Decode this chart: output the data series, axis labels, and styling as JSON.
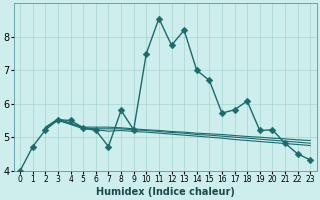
{
  "xlabel": "Humidex (Indice chaleur)",
  "background_color": "#cdeeed",
  "line_color": "#1a6b6b",
  "grid_color": "#a8d5d0",
  "xlim": [
    -0.5,
    23.5
  ],
  "ylim": [
    4,
    9
  ],
  "yticks": [
    4,
    5,
    6,
    7,
    8
  ],
  "xticks": [
    0,
    1,
    2,
    3,
    4,
    5,
    6,
    7,
    8,
    9,
    10,
    11,
    12,
    13,
    14,
    15,
    16,
    17,
    18,
    19,
    20,
    21,
    22,
    23
  ],
  "lines": [
    {
      "x": [
        0,
        1,
        2,
        3,
        4,
        5,
        6,
        7,
        8,
        9,
        10,
        11,
        12,
        13,
        14,
        15,
        16,
        17,
        18,
        19,
        20,
        21,
        22,
        23
      ],
      "y": [
        4.0,
        4.72,
        5.22,
        5.52,
        5.5,
        5.28,
        5.2,
        4.72,
        5.8,
        5.22,
        7.5,
        8.55,
        7.75,
        8.2,
        7.0,
        6.7,
        5.72,
        5.82,
        6.08,
        5.2,
        5.22,
        4.82,
        4.5,
        4.32
      ],
      "marker": true,
      "linewidth": 1.0,
      "markersize": 3.5
    },
    {
      "x": [
        2,
        3,
        4,
        5,
        6,
        7,
        8,
        9,
        10,
        11,
        12,
        13,
        14,
        15,
        16,
        17,
        18,
        19,
        20,
        21,
        22,
        23
      ],
      "y": [
        5.3,
        5.55,
        5.42,
        5.3,
        5.3,
        5.3,
        5.28,
        5.25,
        5.22,
        5.2,
        5.17,
        5.15,
        5.12,
        5.1,
        5.08,
        5.05,
        5.02,
        5.0,
        4.97,
        4.95,
        4.92,
        4.9
      ],
      "marker": false,
      "linewidth": 0.8,
      "markersize": 0
    },
    {
      "x": [
        2,
        3,
        4,
        5,
        6,
        7,
        8,
        9,
        10,
        11,
        12,
        13,
        14,
        15,
        16,
        17,
        18,
        19,
        20,
        21,
        22,
        23
      ],
      "y": [
        5.28,
        5.52,
        5.4,
        5.28,
        5.25,
        5.25,
        5.25,
        5.22,
        5.2,
        5.17,
        5.14,
        5.12,
        5.08,
        5.06,
        5.03,
        5.0,
        4.97,
        4.94,
        4.91,
        4.88,
        4.85,
        4.82
      ],
      "marker": false,
      "linewidth": 0.8,
      "markersize": 0
    },
    {
      "x": [
        2,
        3,
        4,
        5,
        6,
        7,
        8,
        9,
        10,
        11,
        12,
        13,
        14,
        15,
        16,
        17,
        18,
        19,
        20,
        21,
        22,
        23
      ],
      "y": [
        5.25,
        5.5,
        5.38,
        5.25,
        5.22,
        5.18,
        5.2,
        5.17,
        5.15,
        5.12,
        5.09,
        5.06,
        5.03,
        5.0,
        4.97,
        4.93,
        4.9,
        4.87,
        4.84,
        4.81,
        4.78,
        4.75
      ],
      "marker": false,
      "linewidth": 0.8,
      "markersize": 0
    }
  ]
}
